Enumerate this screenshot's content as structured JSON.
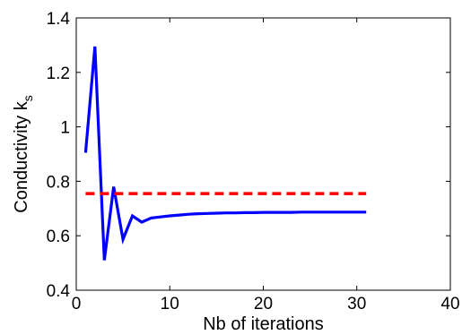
{
  "chart_data": {
    "type": "line",
    "xlabel": "Nb of iterations",
    "ylabel_main": "Conductivity k",
    "ylabel_subscript": "s",
    "xlim": [
      0,
      40
    ],
    "ylim": [
      0.4,
      1.4
    ],
    "x_ticks": [
      0,
      10,
      20,
      30,
      40
    ],
    "x_tick_labels": [
      "0",
      "10",
      "20",
      "30",
      "40"
    ],
    "y_ticks": [
      0.4,
      0.6,
      0.8,
      1.0,
      1.2,
      1.4
    ],
    "y_tick_labels": [
      "0.4",
      "0.6",
      "0.8",
      "1",
      "1.2",
      "1.4"
    ],
    "grid": false,
    "series": [
      {
        "style": "solid",
        "color": "#0000ff",
        "x": [
          1,
          2,
          3,
          4,
          5,
          6,
          7,
          8,
          9,
          10,
          11,
          12,
          13,
          14,
          15,
          16,
          17,
          18,
          19,
          20,
          21,
          22,
          23,
          24,
          25,
          26,
          27,
          28,
          29,
          30,
          31
        ],
        "y": [
          0.905,
          1.295,
          0.51,
          0.78,
          0.587,
          0.673,
          0.65,
          0.665,
          0.669,
          0.673,
          0.676,
          0.679,
          0.681,
          0.682,
          0.683,
          0.684,
          0.684,
          0.685,
          0.685,
          0.686,
          0.686,
          0.686,
          0.686,
          0.687,
          0.687,
          0.687,
          0.687,
          0.687,
          0.687,
          0.687,
          0.687
        ]
      },
      {
        "style": "dashed",
        "color": "#ff0000",
        "x": [
          1,
          31
        ],
        "y": [
          0.755,
          0.755
        ]
      }
    ]
  }
}
